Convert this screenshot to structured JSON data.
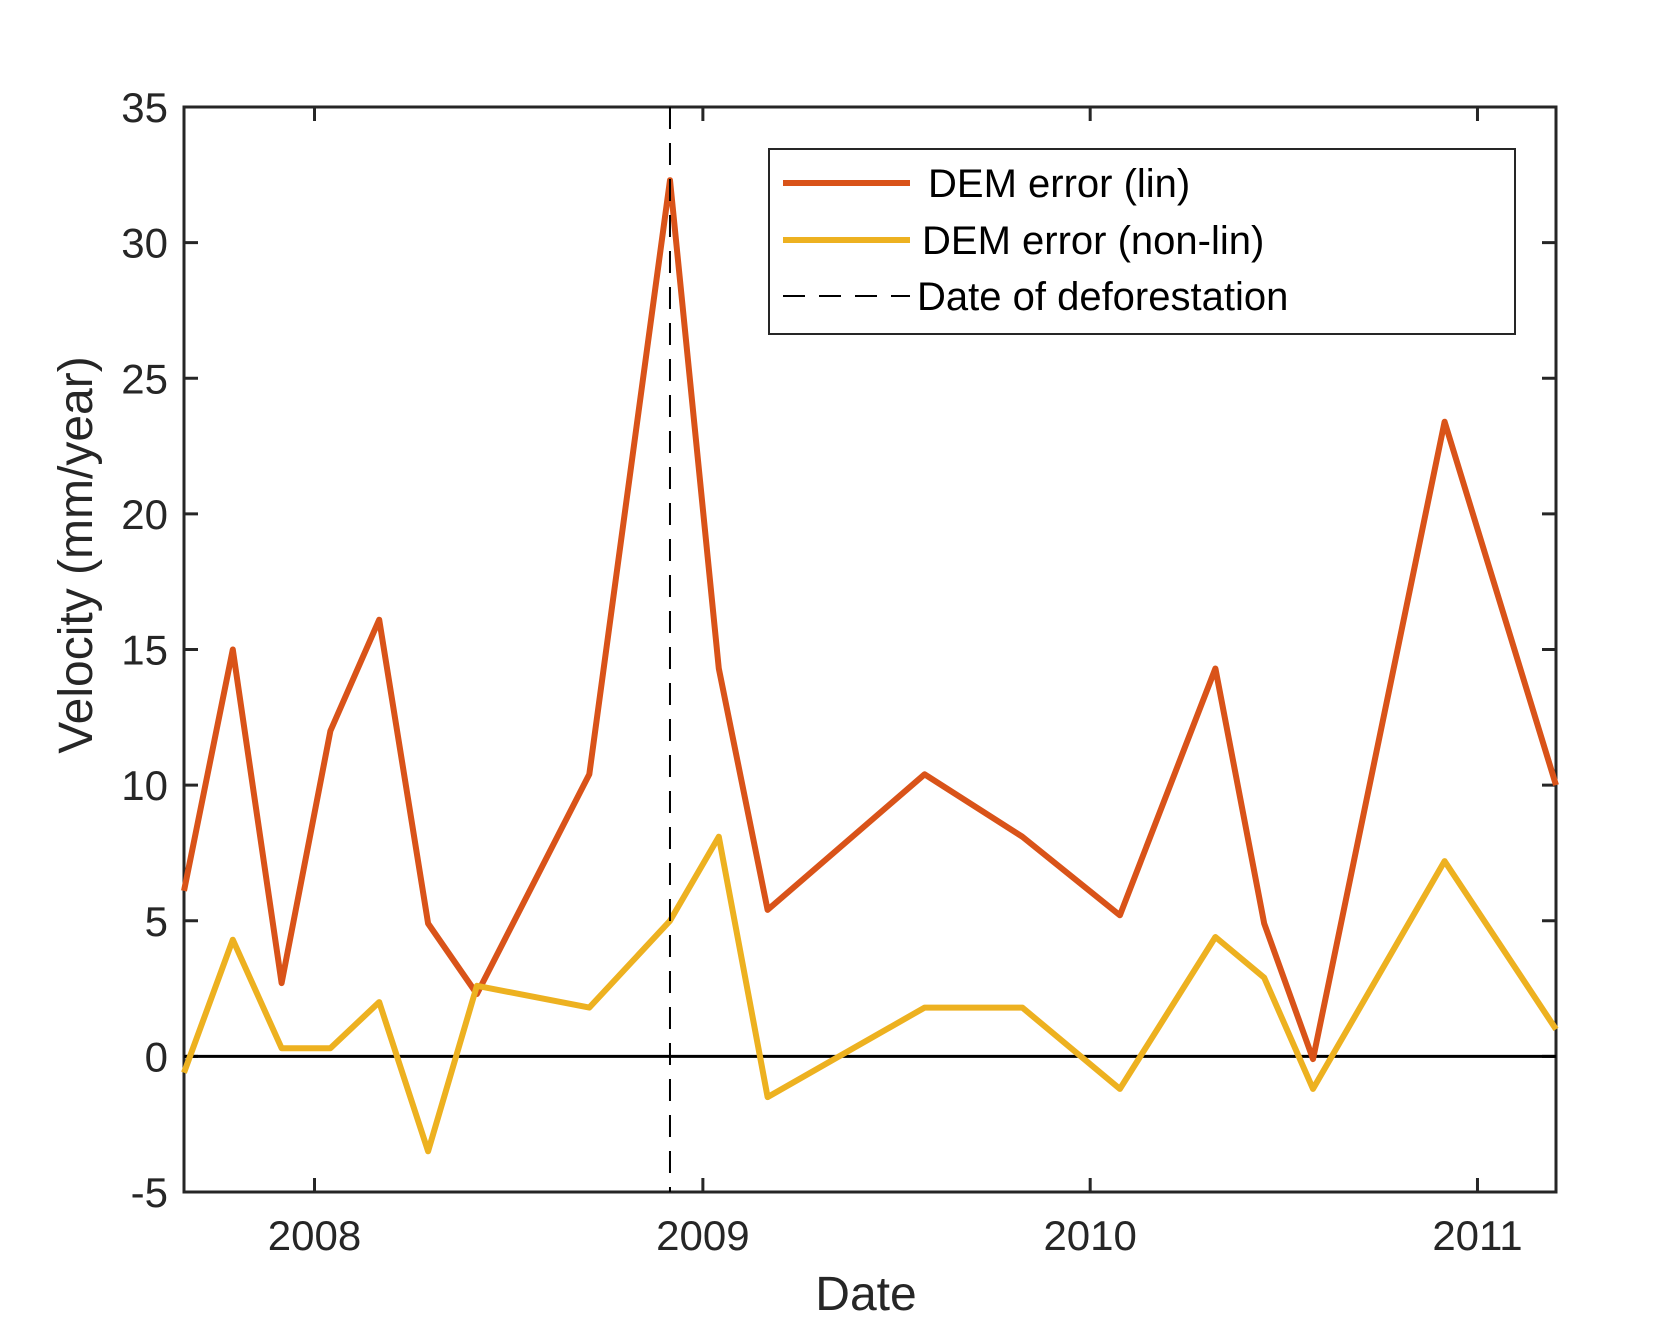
{
  "chart_data": {
    "type": "line",
    "xlabel": "Date",
    "ylabel": "Velocity (mm/year)",
    "xlim": [
      "2007-08-31",
      "2011-03-16"
    ],
    "ylim": [
      -5,
      35
    ],
    "x_ticks": [
      {
        "date": "2008-01-01",
        "label": "2008"
      },
      {
        "date": "2009-01-01",
        "label": "2009"
      },
      {
        "date": "2010-01-01",
        "label": "2010"
      },
      {
        "date": "2011-01-01",
        "label": "2011"
      }
    ],
    "y_ticks": [
      -5,
      0,
      5,
      10,
      15,
      20,
      25,
      30,
      35
    ],
    "grid": false,
    "legend_position": "top-right",
    "zero_line": 0,
    "series": [
      {
        "name": "DEM error (lin)",
        "color": "#D95319",
        "x": [
          "2007-08-31",
          "2007-10-16",
          "2007-12-01",
          "2008-01-16",
          "2008-03-02",
          "2008-04-17",
          "2008-06-02",
          "2008-09-16",
          "2008-12-01",
          "2009-01-16",
          "2009-03-03",
          "2009-07-29",
          "2009-10-29",
          "2010-01-29",
          "2010-04-29",
          "2010-06-14",
          "2010-07-30",
          "2010-12-01",
          "2011-03-16"
        ],
        "values": [
          6.1,
          15.0,
          2.7,
          12.0,
          16.1,
          4.9,
          2.3,
          10.4,
          32.3,
          14.3,
          5.4,
          10.4,
          8.1,
          5.2,
          14.3,
          4.9,
          -0.1,
          23.4,
          10.0
        ]
      },
      {
        "name": "DEM error (non-lin)",
        "color": "#EDB120",
        "x": [
          "2007-08-31",
          "2007-10-16",
          "2007-12-01",
          "2008-01-16",
          "2008-03-02",
          "2008-04-17",
          "2008-06-02",
          "2008-09-16",
          "2008-12-01",
          "2009-01-16",
          "2009-03-03",
          "2009-07-29",
          "2009-10-29",
          "2010-01-29",
          "2010-04-29",
          "2010-06-14",
          "2010-07-30",
          "2010-12-01",
          "2011-03-16"
        ],
        "values": [
          -0.6,
          4.3,
          0.3,
          0.3,
          2.0,
          -3.5,
          2.6,
          1.8,
          5.0,
          8.1,
          -1.5,
          1.8,
          1.8,
          -1.2,
          4.4,
          2.9,
          -1.2,
          7.2,
          1.0
        ]
      }
    ],
    "reference_lines": [
      {
        "name": "Date of deforestation",
        "orientation": "vertical",
        "x": "2008-12-01",
        "style": "dashed",
        "color": "#000000"
      }
    ]
  }
}
